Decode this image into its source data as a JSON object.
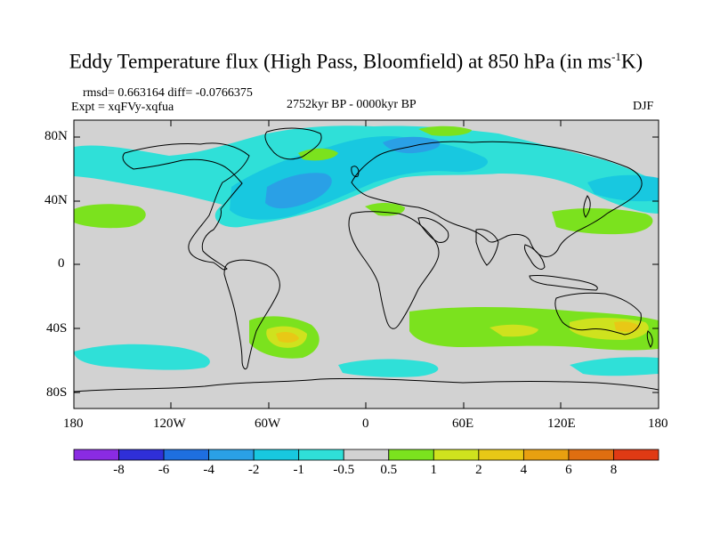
{
  "title": {
    "prefix": "Eddy Temperature flux (High Pass, Bloomfield) at 850 hPa (in ms",
    "superscript": "-1",
    "suffix": "K)"
  },
  "stats": "rmsd= 0.663164 diff= -0.0766375",
  "experiment": "Expt = xqFVy-xqfua",
  "period": "2752kyr BP - 0000kyr BP",
  "season": "DJF",
  "axes": {
    "y_ticks": [
      "80N",
      "40N",
      "0",
      "40S",
      "80S"
    ],
    "x_ticks": [
      "180",
      "120W",
      "60W",
      "0",
      "60E",
      "120E",
      "180"
    ]
  },
  "colorbar": {
    "labels": [
      "-8",
      "-6",
      "-4",
      "-2",
      "-1",
      "-0.5",
      "0.5",
      "1",
      "2",
      "4",
      "6",
      "8"
    ],
    "colors": [
      "#8a2be2",
      "#2f2fd8",
      "#1e6fe0",
      "#2aa0e6",
      "#18c8e0",
      "#2fe0d8",
      "#d2d2d2",
      "#7be21e",
      "#cfe21e",
      "#e8c816",
      "#e8a010",
      "#e06e10",
      "#e03a14"
    ]
  },
  "map_colors": {
    "background": "#d2d2d2",
    "neg_light": "#2fe0d8",
    "neg_mid": "#18c8e0",
    "neg_strong": "#2aa0e6",
    "neg_stronger": "#1e6fe0",
    "pos_light": "#7be21e",
    "pos_mid": "#cfe21e",
    "pos_strong": "#e8c816",
    "coastline": "#000000"
  }
}
